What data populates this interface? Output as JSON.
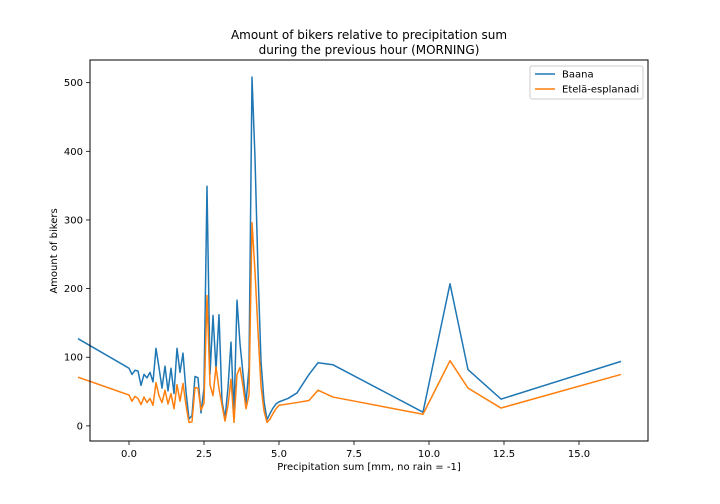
{
  "chart_data": {
    "type": "line",
    "title": "Amount of bikers relative to precipitation sum\nduring the previous hour (MORNING)",
    "xlabel": "Precipitation sum [mm, no rain = -1]",
    "ylabel": "Amount of bikers",
    "xlim": [
      -1.3,
      17.3
    ],
    "ylim": [
      -22,
      533
    ],
    "xticks": [
      0.0,
      2.5,
      5.0,
      7.5,
      10.0,
      12.5,
      15.0
    ],
    "xtick_labels": [
      "0.0",
      "2.5",
      "5.0",
      "7.5",
      "10.0",
      "12.5",
      "15.0"
    ],
    "yticks": [
      0,
      100,
      200,
      300,
      400,
      500
    ],
    "ytick_labels": [
      "0",
      "100",
      "200",
      "300",
      "400",
      "500"
    ],
    "grid": false,
    "legend_position": "top-right",
    "series": [
      {
        "name": "Baana",
        "color": "#1f77b4",
        "x": [
          -1.7,
          0.0,
          0.1,
          0.2,
          0.3,
          0.4,
          0.5,
          0.6,
          0.7,
          0.8,
          0.9,
          1.0,
          1.1,
          1.2,
          1.3,
          1.4,
          1.5,
          1.6,
          1.7,
          1.8,
          1.9,
          2.0,
          2.1,
          2.2,
          2.3,
          2.4,
          2.5,
          2.6,
          2.7,
          2.8,
          2.9,
          3.0,
          3.1,
          3.2,
          3.3,
          3.4,
          3.5,
          3.6,
          3.7,
          3.8,
          3.9,
          4.0,
          4.1,
          4.2,
          4.3,
          4.4,
          4.5,
          4.6,
          4.7,
          4.8,
          4.9,
          5.0,
          5.3,
          5.6,
          6.0,
          6.3,
          6.8,
          9.8,
          10.7,
          11.3,
          12.4,
          16.4
        ],
        "values": [
          127,
          84,
          75,
          81,
          80,
          59,
          75,
          70,
          78,
          64,
          113,
          85,
          55,
          87,
          51,
          84,
          47,
          113,
          78,
          106,
          50,
          10,
          15,
          72,
          70,
          19,
          55,
          349,
          75,
          161,
          82,
          162,
          36,
          11,
          56,
          122,
          17,
          183,
          120,
          76,
          33,
          85,
          508,
          390,
          225,
          94,
          36,
          9,
          18,
          26,
          32,
          35,
          40,
          48,
          75,
          92,
          89,
          20,
          207,
          82,
          39,
          94
        ]
      },
      {
        "name": "Etelä-esplanadi",
        "color": "#ff7f0e",
        "x": [
          -1.7,
          0.0,
          0.1,
          0.2,
          0.3,
          0.4,
          0.5,
          0.6,
          0.7,
          0.8,
          0.9,
          1.0,
          1.1,
          1.2,
          1.3,
          1.4,
          1.5,
          1.6,
          1.7,
          1.8,
          1.9,
          2.0,
          2.1,
          2.2,
          2.3,
          2.4,
          2.5,
          2.6,
          2.7,
          2.8,
          2.9,
          3.0,
          3.1,
          3.2,
          3.3,
          3.4,
          3.5,
          3.6,
          3.7,
          3.8,
          3.9,
          4.0,
          4.1,
          4.2,
          4.3,
          4.4,
          4.5,
          4.6,
          4.7,
          4.8,
          4.9,
          5.0,
          5.3,
          5.6,
          6.0,
          6.3,
          6.8,
          9.8,
          10.7,
          11.3,
          12.4,
          16.4
        ],
        "values": [
          71,
          45,
          36,
          43,
          40,
          31,
          42,
          34,
          40,
          30,
          63,
          44,
          34,
          52,
          32,
          47,
          25,
          60,
          36,
          62,
          30,
          5,
          6,
          56,
          55,
          23,
          33,
          190,
          60,
          44,
          86,
          54,
          30,
          7,
          30,
          68,
          5,
          75,
          85,
          58,
          25,
          45,
          296,
          225,
          138,
          58,
          22,
          5,
          10,
          18,
          25,
          30,
          32,
          34,
          37,
          52,
          42,
          17,
          95,
          55,
          26,
          75
        ]
      }
    ]
  }
}
